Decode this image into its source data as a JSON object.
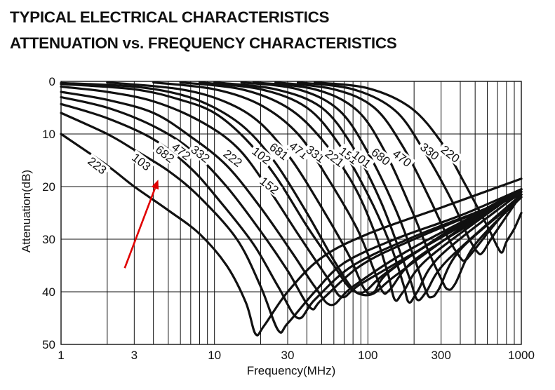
{
  "titles": {
    "line1": "TYPICAL ELECTRICAL CHARACTERISTICS",
    "line2": "ATTENUATION vs. FREQUENCY CHARACTERISTICS"
  },
  "chart_data": {
    "type": "line",
    "xlabel": "Frequency(MHz)",
    "ylabel": "Attenuation(dB)",
    "x_scale": "log",
    "xlim": [
      1,
      1000
    ],
    "ylim": [
      0,
      50
    ],
    "y_inverted": true,
    "grid": true,
    "x_ticks": [
      1,
      3,
      10,
      30,
      100,
      300,
      1000
    ],
    "x_tick_labels": [
      "1",
      "3",
      "10",
      "30",
      "100",
      "300",
      "1000"
    ],
    "y_ticks": [
      0,
      10,
      20,
      30,
      40,
      50
    ],
    "y_tick_labels": [
      "0",
      "10",
      "20",
      "30",
      "40",
      "50"
    ],
    "series": [
      {
        "name": "223",
        "label_at": [
          1.7,
          16.2
        ],
        "points": [
          [
            1,
            10.0
          ],
          [
            2,
            16.0
          ],
          [
            3,
            20.0
          ],
          [
            5,
            24.5
          ],
          [
            8,
            29.0
          ],
          [
            12,
            35.0
          ],
          [
            16,
            42.0
          ],
          [
            18.5,
            48.0
          ],
          [
            21,
            46.5
          ],
          [
            30,
            40.0
          ],
          [
            50,
            33.5
          ],
          [
            100,
            29.0
          ],
          [
            300,
            24.0
          ],
          [
            1000,
            18.5
          ]
        ]
      },
      {
        "name": "103",
        "label_at": [
          3.3,
          15.5
        ],
        "points": [
          [
            1,
            6.0
          ],
          [
            2,
            10.0
          ],
          [
            3,
            13.0
          ],
          [
            5,
            17.0
          ],
          [
            8,
            22.0
          ],
          [
            14,
            30.0
          ],
          [
            20,
            39.0
          ],
          [
            26,
            47.3
          ],
          [
            30,
            46.0
          ],
          [
            45,
            40.0
          ],
          [
            70,
            34.5
          ],
          [
            150,
            30.0
          ],
          [
            400,
            25.5
          ],
          [
            1000,
            20.5
          ]
        ]
      },
      {
        "name": "682",
        "label_at": [
          4.7,
          14.0
        ],
        "points": [
          [
            1,
            4.3
          ],
          [
            2,
            7.0
          ],
          [
            4,
            11.0
          ],
          [
            7,
            16.5
          ],
          [
            11,
            23.0
          ],
          [
            18,
            31.0
          ],
          [
            26,
            39.0
          ],
          [
            35,
            45.0
          ],
          [
            45,
            41.5
          ],
          [
            80,
            35.0
          ],
          [
            200,
            29.5
          ],
          [
            500,
            25.0
          ],
          [
            1000,
            21.5
          ]
        ]
      },
      {
        "name": "472",
        "label_at": [
          6.0,
          13.5
        ],
        "points": [
          [
            1,
            3.0
          ],
          [
            2,
            5.0
          ],
          [
            4,
            8.5
          ],
          [
            7,
            13.0
          ],
          [
            12,
            20.0
          ],
          [
            20,
            28.5
          ],
          [
            30,
            36.0
          ],
          [
            42,
            43.0
          ],
          [
            50,
            41.5
          ],
          [
            90,
            35.0
          ],
          [
            200,
            30.0
          ],
          [
            1000,
            21.5
          ]
        ]
      },
      {
        "name": "332",
        "label_at": [
          8.0,
          14.0
        ],
        "points": [
          [
            1,
            2.0
          ],
          [
            2,
            3.5
          ],
          [
            4,
            6.0
          ],
          [
            7,
            10.5
          ],
          [
            12,
            16.0
          ],
          [
            20,
            24.0
          ],
          [
            32,
            32.5
          ],
          [
            45,
            39.0
          ],
          [
            58,
            42.5
          ],
          [
            80,
            39.0
          ],
          [
            200,
            31.5
          ],
          [
            1000,
            21.0
          ]
        ]
      },
      {
        "name": "222",
        "label_at": [
          13.0,
          14.8
        ],
        "points": [
          [
            1,
            1.0
          ],
          [
            2,
            2.0
          ],
          [
            4,
            3.8
          ],
          [
            8,
            7.5
          ],
          [
            14,
            12.5
          ],
          [
            22,
            20.0
          ],
          [
            35,
            29.0
          ],
          [
            55,
            37.5
          ],
          [
            68,
            41.0
          ],
          [
            90,
            38.5
          ],
          [
            250,
            31.0
          ],
          [
            1000,
            21.0
          ]
        ]
      },
      {
        "name": "102",
        "label_at": [
          20.0,
          14.3
        ],
        "points": [
          [
            1,
            0.3
          ],
          [
            3,
            1.0
          ],
          [
            6,
            2.5
          ],
          [
            10,
            5.0
          ],
          [
            16,
            9.0
          ],
          [
            25,
            15.5
          ],
          [
            40,
            25.0
          ],
          [
            60,
            34.0
          ],
          [
            80,
            39.5
          ],
          [
            95,
            40.0
          ],
          [
            130,
            36.5
          ],
          [
            300,
            29.5
          ],
          [
            1000,
            20.5
          ]
        ]
      },
      {
        "name": "152",
        "label_at": [
          22.5,
          20.0
        ],
        "points": [
          [
            1,
            0.5
          ],
          [
            3,
            1.5
          ],
          [
            6,
            3.5
          ],
          [
            10,
            6.0
          ],
          [
            16,
            11.0
          ],
          [
            25,
            18.0
          ],
          [
            40,
            27.5
          ],
          [
            60,
            35.0
          ],
          [
            78,
            39.5
          ],
          [
            105,
            40.5
          ],
          [
            150,
            37.0
          ],
          [
            400,
            28.0
          ],
          [
            1000,
            20.5
          ]
        ]
      },
      {
        "name": "681",
        "label_at": [
          26.0,
          13.5
        ],
        "points": [
          [
            2,
            0.2
          ],
          [
            6,
            1.5
          ],
          [
            12,
            4.0
          ],
          [
            20,
            8.0
          ],
          [
            32,
            15.0
          ],
          [
            50,
            24.0
          ],
          [
            75,
            33.0
          ],
          [
            95,
            39.5
          ],
          [
            110,
            40.0
          ],
          [
            140,
            36.0
          ],
          [
            400,
            27.0
          ],
          [
            1000,
            20.5
          ]
        ]
      },
      {
        "name": "471",
        "label_at": [
          35.0,
          13.3
        ],
        "points": [
          [
            4,
            0.2
          ],
          [
            10,
            1.5
          ],
          [
            20,
            4.5
          ],
          [
            35,
            10.0
          ],
          [
            55,
            18.5
          ],
          [
            85,
            28.0
          ],
          [
            110,
            36.0
          ],
          [
            125,
            40.0
          ],
          [
            140,
            39.5
          ],
          [
            200,
            34.0
          ],
          [
            500,
            26.5
          ],
          [
            1000,
            20.5
          ]
        ]
      },
      {
        "name": "331",
        "label_at": [
          45.0,
          14.0
        ],
        "points": [
          [
            6,
            0.2
          ],
          [
            15,
            1.5
          ],
          [
            30,
            5.0
          ],
          [
            50,
            11.0
          ],
          [
            80,
            19.5
          ],
          [
            110,
            28.5
          ],
          [
            135,
            36.5
          ],
          [
            150,
            41.5
          ],
          [
            170,
            40.0
          ],
          [
            250,
            33.5
          ],
          [
            1000,
            20.5
          ]
        ]
      },
      {
        "name": "221",
        "label_at": [
          60.0,
          14.8
        ],
        "points": [
          [
            8,
            0.2
          ],
          [
            20,
            1.5
          ],
          [
            40,
            5.0
          ],
          [
            65,
            12.0
          ],
          [
            100,
            21.5
          ],
          [
            140,
            31.0
          ],
          [
            170,
            38.5
          ],
          [
            185,
            42.0
          ],
          [
            210,
            40.0
          ],
          [
            300,
            33.0
          ],
          [
            1000,
            21.0
          ]
        ]
      },
      {
        "name": "151",
        "label_at": [
          74.0,
          14.3
        ],
        "points": [
          [
            10,
            0.2
          ],
          [
            25,
            1.5
          ],
          [
            50,
            5.0
          ],
          [
            80,
            12.5
          ],
          [
            120,
            22.5
          ],
          [
            160,
            32.0
          ],
          [
            190,
            38.0
          ],
          [
            210,
            41.5
          ],
          [
            240,
            40.0
          ],
          [
            330,
            34.0
          ],
          [
            1000,
            21.5
          ]
        ]
      },
      {
        "name": "101",
        "label_at": [
          90.0,
          15.0
        ],
        "points": [
          [
            15,
            0.2
          ],
          [
            35,
            1.5
          ],
          [
            65,
            5.5
          ],
          [
            100,
            13.5
          ],
          [
            150,
            24.0
          ],
          [
            200,
            33.5
          ],
          [
            240,
            40.0
          ],
          [
            260,
            41.0
          ],
          [
            290,
            39.5
          ],
          [
            400,
            32.0
          ],
          [
            1000,
            22.0
          ]
        ]
      },
      {
        "name": "680",
        "label_at": [
          120.0,
          14.5
        ],
        "points": [
          [
            18,
            0.2
          ],
          [
            45,
            1.5
          ],
          [
            85,
            5.5
          ],
          [
            130,
            13.5
          ],
          [
            190,
            24.0
          ],
          [
            250,
            32.5
          ],
          [
            300,
            37.5
          ],
          [
            330,
            39.5
          ],
          [
            370,
            38.5
          ],
          [
            500,
            31.0
          ],
          [
            1000,
            22.0
          ]
        ]
      },
      {
        "name": "470",
        "label_at": [
          165.0,
          14.8
        ],
        "points": [
          [
            25,
            0.2
          ],
          [
            60,
            1.5
          ],
          [
            110,
            5.0
          ],
          [
            170,
            12.5
          ],
          [
            250,
            22.0
          ],
          [
            330,
            29.5
          ],
          [
            400,
            33.5
          ],
          [
            430,
            34.0
          ],
          [
            480,
            32.5
          ],
          [
            700,
            26.5
          ],
          [
            1000,
            21.5
          ]
        ]
      },
      {
        "name": "330",
        "label_at": [
          250.0,
          13.5
        ],
        "points": [
          [
            35,
            0.2
          ],
          [
            80,
            1.5
          ],
          [
            150,
            5.5
          ],
          [
            230,
            13.0
          ],
          [
            350,
            22.5
          ],
          [
            450,
            29.5
          ],
          [
            520,
            32.5
          ],
          [
            560,
            32.5
          ],
          [
            650,
            29.5
          ],
          [
            1000,
            21.5
          ]
        ]
      },
      {
        "name": "220",
        "label_at": [
          340.0,
          14.0
        ],
        "points": [
          [
            45,
            0.2
          ],
          [
            100,
            1.3
          ],
          [
            190,
            5.0
          ],
          [
            300,
            11.5
          ],
          [
            420,
            19.0
          ],
          [
            600,
            27.5
          ],
          [
            700,
            31.5
          ],
          [
            750,
            32.5
          ],
          [
            800,
            30.5
          ],
          [
            900,
            28.0
          ],
          [
            1000,
            25.0
          ]
        ]
      }
    ],
    "annotations": [
      {
        "type": "arrow",
        "color": "#e00000",
        "from": [
          2.6,
          35.5
        ],
        "to": [
          4.3,
          18.7
        ]
      }
    ]
  }
}
